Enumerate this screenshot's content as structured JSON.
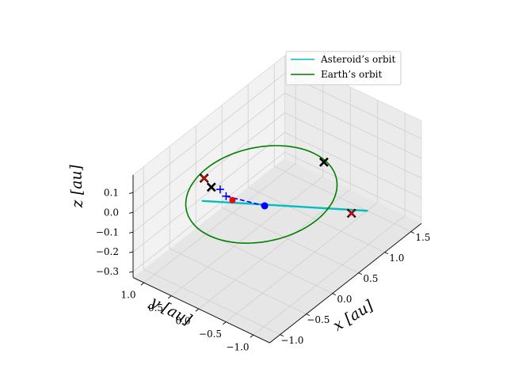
{
  "chart_data": {
    "type": "line",
    "projection": "3d",
    "title": "",
    "xlabel": "x [au]",
    "ylabel": "y [au]",
    "zlabel": "z [au]",
    "xlim": [
      -1.2,
      1.7
    ],
    "ylim": [
      -1.3,
      1.2
    ],
    "zlim": [
      -0.33,
      0.19
    ],
    "xticks": [
      -1.0,
      -0.5,
      0.0,
      0.5,
      1.0,
      1.5
    ],
    "yticks": [
      1.0,
      0.5,
      0.0,
      -0.5,
      -1.0
    ],
    "zticks": [
      0.1,
      0.0,
      -0.1,
      -0.2,
      -0.3
    ],
    "xtick_labels": [
      "−1.0",
      "−0.5",
      "0.0",
      "0.5",
      "1.0",
      "1.5"
    ],
    "ytick_labels": [
      "1.0",
      "0.5",
      "0.0",
      "−0.5",
      "−1.0"
    ],
    "ztick_labels": [
      "0.1",
      "0.0",
      "−0.1",
      "−0.2",
      "−0.3"
    ],
    "grid": true,
    "legend_position": "top-right",
    "colors": {
      "asteroid": "#00bfbf",
      "earth": "#008000",
      "dashed": "#0000ff",
      "cross_black": "#000000",
      "cross_red": "#ff0000",
      "dot_red": "#ff0000",
      "dot_blue": "#0000ff"
    },
    "series": [
      {
        "name": "Asteroid's orbit",
        "label": "Asteroid’s orbit",
        "kind": "line",
        "start": [
          -1.0,
          0.12,
          0.16
        ],
        "end": [
          1.5,
          -0.5,
          -0.33
        ]
      },
      {
        "name": "Earth's orbit",
        "label": "Earth’s orbit",
        "kind": "circle",
        "radius": 1.0,
        "z": 0.0
      }
    ],
    "dashed_segment": {
      "start": [
        -0.55,
        0.12,
        0.09
      ],
      "end": [
        0.0,
        -0.06,
        -0.05
      ]
    },
    "markers": [
      {
        "type": "x-black",
        "xyz": [
          -0.55,
          0.39,
          0.1
        ]
      },
      {
        "type": "x-black",
        "xyz": [
          0.85,
          -0.33,
          0.03
        ]
      },
      {
        "type": "x-black",
        "xyz": [
          -0.05,
          1.0,
          -0.04
        ]
      },
      {
        "type": "x-red",
        "xyz": [
          -0.05,
          1.0,
          -0.04
        ]
      },
      {
        "type": "x-black",
        "xyz": [
          1.2,
          -0.5,
          -0.28
        ]
      },
      {
        "type": "x-red",
        "xyz": [
          1.2,
          -0.5,
          -0.28
        ]
      },
      {
        "type": "plus-blue",
        "xyz": [
          -0.55,
          0.12,
          0.09
        ]
      },
      {
        "type": "dot-red",
        "xyz": [
          -0.55,
          0.12,
          0.09
        ]
      },
      {
        "type": "dot-blue",
        "xyz": [
          0.0,
          -0.06,
          -0.05
        ]
      }
    ]
  }
}
